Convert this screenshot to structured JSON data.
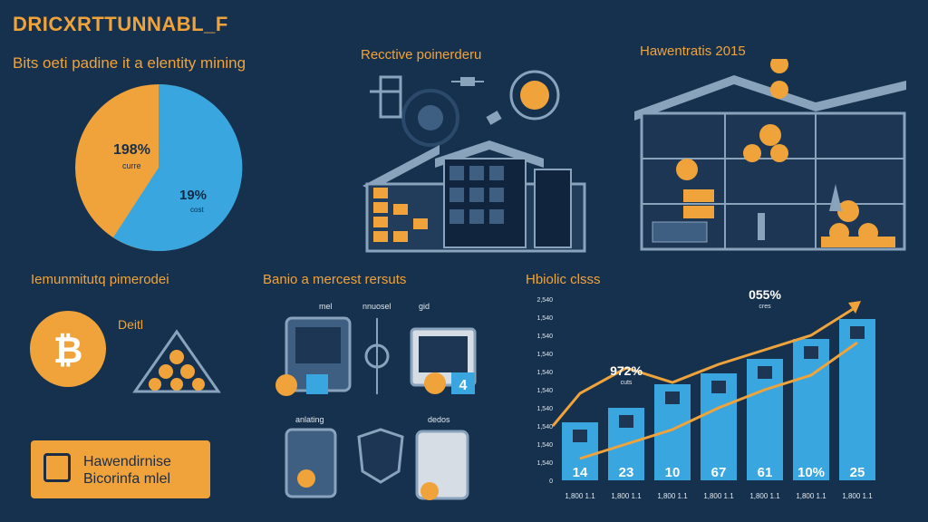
{
  "header": {
    "title": "DRICXRTTUNNABL_F",
    "subtitle": "Bits oeti padine it a elentity mining"
  },
  "pie": {
    "big_pct": "198%",
    "big_label": "curre",
    "small_pct": "19%",
    "small_label": "cost",
    "colors": {
      "orange": "#f0a33a",
      "blue": "#3aa6e0"
    }
  },
  "section_titles": {
    "illus_left": "Recctive poinerderu",
    "illus_right": "Hawentratis 2015",
    "bottom_left": "Iemunmitutq pimerodei",
    "bottom_mid": "Banio a mercest rersuts",
    "bottom_right": "Hbiolic clsss"
  },
  "bottom_left": {
    "detail_label": "Deitl",
    "legend_text_1": "Hawendirnise",
    "legend_text_2": "Bicorinfa mlel"
  },
  "bottom_mid": {
    "label_1": "mel",
    "label_2": "nnuosel",
    "label_3": "gid",
    "label_4": "anlating",
    "label_5": "dedos",
    "badge_value": "4"
  },
  "chart_data": {
    "type": "bar",
    "title": "Hbiolic clsss",
    "categories": [
      "1,800 1.1",
      "1,800 1.1",
      "1,800 1.1",
      "1,800 1.1",
      "1,800 1.1",
      "1,800 1.1",
      "1,800 1.1"
    ],
    "bar_labels": [
      "14",
      "23",
      "10",
      "67",
      "61",
      "10%",
      "25"
    ],
    "values": [
      32,
      40,
      53,
      59,
      67,
      78,
      89
    ],
    "line_values": [
      48,
      62,
      54,
      64,
      72,
      80,
      96
    ],
    "line2_values": [
      12,
      20,
      28,
      40,
      50,
      58,
      76
    ],
    "y_ticks": [
      "0",
      "1,540",
      "1,540",
      "1,540",
      "1,540",
      "1,540",
      "1,540",
      "1,540",
      "1,540",
      "1,540",
      "2,540"
    ],
    "annotations": [
      {
        "text": "972%",
        "sub": "cuts"
      },
      {
        "text": "055%",
        "sub": "cres"
      }
    ],
    "ylim": [
      0,
      100
    ],
    "bar_color": "#3aa6e0",
    "line_color": "#f0a33a"
  }
}
